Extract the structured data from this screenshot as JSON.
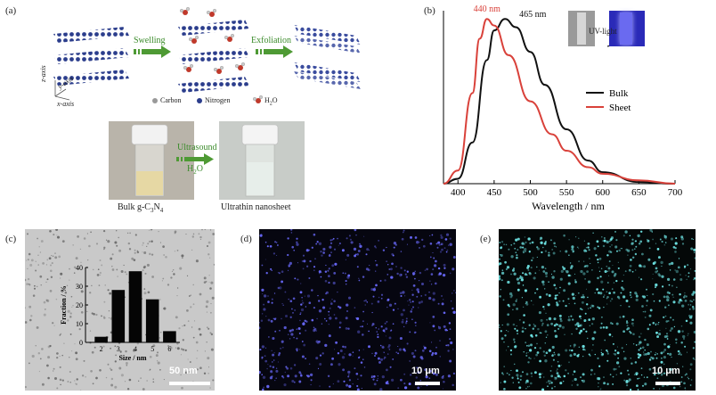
{
  "panel_a": {
    "label": "(a)",
    "swelling_label": "Swelling",
    "exfoliation_label": "Exfoliation",
    "axis_z": "z-axis",
    "axis_y": "y-axis",
    "axis_x": "x-axis",
    "legend_carbon": "Carbon",
    "legend_nitrogen": "Nitrogen",
    "legend_water": "H",
    "legend_water_sub": "2",
    "legend_water_end": "O",
    "ultrasound_label": "Ultrasound",
    "h2o_label": "H",
    "h2o_sub": "2",
    "h2o_end": "O",
    "bulk_caption": "Bulk g-C",
    "bulk_sub1": "3",
    "bulk_mid": "N",
    "bulk_sub2": "4",
    "nanosheet_caption": "Ultrathin nanosheet"
  },
  "panel_b": {
    "label": "(b)",
    "uv_label": "UV-light",
    "peak_sheet": "440 nm",
    "peak_bulk": "465 nm"
  },
  "panel_c": {
    "label": "(c)",
    "scale_bar": "50 nm"
  },
  "panel_d": {
    "label": "(d)",
    "scale_bar": "10 μm"
  },
  "panel_e": {
    "label": "(e)",
    "scale_bar": "10 μm"
  },
  "colors": {
    "sheet": "#d9413a",
    "bulk": "#111111",
    "arrow": "#4e9a34",
    "nitrogen": "#2b3d8c",
    "dotsD": "#6b6bff",
    "dotsE": "#6fe6e6"
  },
  "chart_data": [
    {
      "type": "line",
      "xlabel": "Wavelength / nm",
      "ylabel": "",
      "xlim": [
        380,
        700
      ],
      "ylim": [
        0,
        1.05
      ],
      "x_ticks": [
        400,
        450,
        500,
        550,
        600,
        650,
        700
      ],
      "legend": "right",
      "series": [
        {
          "name": "Bulk",
          "color": "#111111",
          "x": [
            380,
            400,
            420,
            440,
            450,
            465,
            480,
            500,
            520,
            550,
            580,
            600,
            650,
            700
          ],
          "y": [
            0,
            0.03,
            0.25,
            0.75,
            0.93,
            1.0,
            0.95,
            0.8,
            0.6,
            0.33,
            0.14,
            0.07,
            0.01,
            0
          ]
        },
        {
          "name": "Sheet",
          "color": "#d9413a",
          "x": [
            380,
            400,
            420,
            430,
            440,
            450,
            470,
            500,
            530,
            550,
            580,
            600,
            650,
            700
          ],
          "y": [
            0,
            0.08,
            0.55,
            0.88,
            1.0,
            0.96,
            0.78,
            0.5,
            0.3,
            0.2,
            0.1,
            0.06,
            0.02,
            0
          ]
        }
      ]
    },
    {
      "type": "bar",
      "xlabel": "Size / nm",
      "ylabel": "Fraction / %",
      "categories": [
        "2",
        "3",
        "4",
        "5",
        "6"
      ],
      "values": [
        3,
        28,
        38,
        23,
        6
      ],
      "ylim": [
        0,
        40
      ],
      "y_ticks": [
        0,
        10,
        20,
        30,
        40
      ]
    }
  ]
}
